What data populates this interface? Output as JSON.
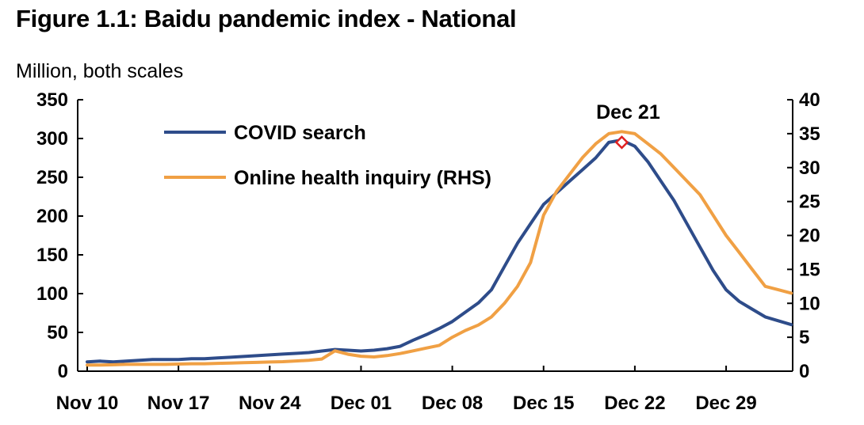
{
  "title": "Figure 1.1: Baidu pandemic index - National",
  "chart_data": {
    "type": "line",
    "title": "Figure 1.1: Baidu pandemic index - National",
    "units_note": "Million, both scales",
    "x_start": "2022-11-10",
    "x_ticks": [
      "Nov 10",
      "Nov 17",
      "Nov 24",
      "Dec 01",
      "Dec 08",
      "Dec 15",
      "Dec 22",
      "Dec 29"
    ],
    "x_tick_dates": [
      "2022-11-10",
      "2022-11-17",
      "2022-11-24",
      "2022-12-01",
      "2022-12-08",
      "2022-12-15",
      "2022-12-22",
      "2022-12-29"
    ],
    "ylim_left": [
      0,
      350
    ],
    "yticks_left": [
      0,
      50,
      100,
      150,
      200,
      250,
      300,
      350
    ],
    "ylim_right": [
      0,
      40
    ],
    "yticks_right": [
      0,
      5,
      10,
      15,
      20,
      25,
      30,
      35,
      40
    ],
    "grid": false,
    "legend_position": "top-left",
    "series": [
      {
        "name": "COVID search",
        "axis": "left",
        "color": "#2E4C8A",
        "x": [
          "2022-11-10",
          "2022-11-11",
          "2022-11-12",
          "2022-11-13",
          "2022-11-14",
          "2022-11-15",
          "2022-11-16",
          "2022-11-17",
          "2022-11-18",
          "2022-11-19",
          "2022-11-20",
          "2022-11-21",
          "2022-11-22",
          "2022-11-23",
          "2022-11-24",
          "2022-11-25",
          "2022-11-26",
          "2022-11-27",
          "2022-11-28",
          "2022-11-29",
          "2022-11-30",
          "2022-12-01",
          "2022-12-02",
          "2022-12-03",
          "2022-12-04",
          "2022-12-05",
          "2022-12-06",
          "2022-12-07",
          "2022-12-08",
          "2022-12-09",
          "2022-12-10",
          "2022-12-11",
          "2022-12-12",
          "2022-12-13",
          "2022-12-14",
          "2022-12-15",
          "2022-12-16",
          "2022-12-17",
          "2022-12-18",
          "2022-12-19",
          "2022-12-20",
          "2022-12-21",
          "2022-12-22",
          "2022-12-23",
          "2022-12-24",
          "2022-12-25",
          "2022-12-26",
          "2022-12-27",
          "2022-12-28",
          "2022-12-29",
          "2022-12-30",
          "2022-12-31",
          "2023-01-01",
          "2023-01-02",
          "2023-01-03"
        ],
        "values": [
          12,
          13,
          12,
          13,
          14,
          15,
          15,
          15,
          16,
          16,
          17,
          18,
          19,
          20,
          21,
          22,
          23,
          24,
          26,
          28,
          27,
          26,
          27,
          29,
          32,
          40,
          47,
          55,
          64,
          76,
          88,
          105,
          135,
          165,
          190,
          215,
          230,
          245,
          260,
          275,
          295,
          298,
          290,
          270,
          245,
          220,
          190,
          160,
          130,
          105,
          90,
          80,
          70,
          65,
          60
        ]
      },
      {
        "name": "Online health inquiry (RHS)",
        "axis": "right",
        "color": "#F0A044",
        "x": [
          "2022-11-10",
          "2022-11-11",
          "2022-11-12",
          "2022-11-13",
          "2022-11-14",
          "2022-11-15",
          "2022-11-16",
          "2022-11-17",
          "2022-11-18",
          "2022-11-19",
          "2022-11-20",
          "2022-11-21",
          "2022-11-22",
          "2022-11-23",
          "2022-11-24",
          "2022-11-25",
          "2022-11-26",
          "2022-11-27",
          "2022-11-28",
          "2022-11-29",
          "2022-11-30",
          "2022-12-01",
          "2022-12-02",
          "2022-12-03",
          "2022-12-04",
          "2022-12-05",
          "2022-12-06",
          "2022-12-07",
          "2022-12-08",
          "2022-12-09",
          "2022-12-10",
          "2022-12-11",
          "2022-12-12",
          "2022-12-13",
          "2022-12-14",
          "2022-12-15",
          "2022-12-16",
          "2022-12-17",
          "2022-12-18",
          "2022-12-19",
          "2022-12-20",
          "2022-12-21",
          "2022-12-22",
          "2022-12-23",
          "2022-12-24",
          "2022-12-25",
          "2022-12-26",
          "2022-12-27",
          "2022-12-28",
          "2022-12-29",
          "2022-12-30",
          "2022-12-31",
          "2023-01-01",
          "2023-01-02",
          "2023-01-03"
        ],
        "values": [
          0.9,
          0.9,
          0.95,
          1.0,
          1.0,
          1.0,
          1.0,
          1.05,
          1.1,
          1.1,
          1.15,
          1.2,
          1.25,
          1.3,
          1.35,
          1.4,
          1.5,
          1.6,
          1.8,
          3.0,
          2.5,
          2.2,
          2.1,
          2.3,
          2.6,
          3.0,
          3.4,
          3.8,
          5.0,
          6.0,
          6.8,
          8.0,
          10.0,
          12.5,
          16.0,
          23.0,
          26.5,
          29.0,
          31.5,
          33.5,
          35.0,
          35.3,
          35.0,
          33.5,
          32.0,
          30.0,
          28.0,
          26.0,
          23.0,
          20.0,
          17.5,
          15.0,
          12.5,
          12.0,
          11.5
        ]
      }
    ],
    "annotations": [
      {
        "label": "Dec 21",
        "x": "2022-12-21",
        "y_left": 295,
        "marker": "diamond",
        "marker_color": "#E02020"
      }
    ]
  }
}
